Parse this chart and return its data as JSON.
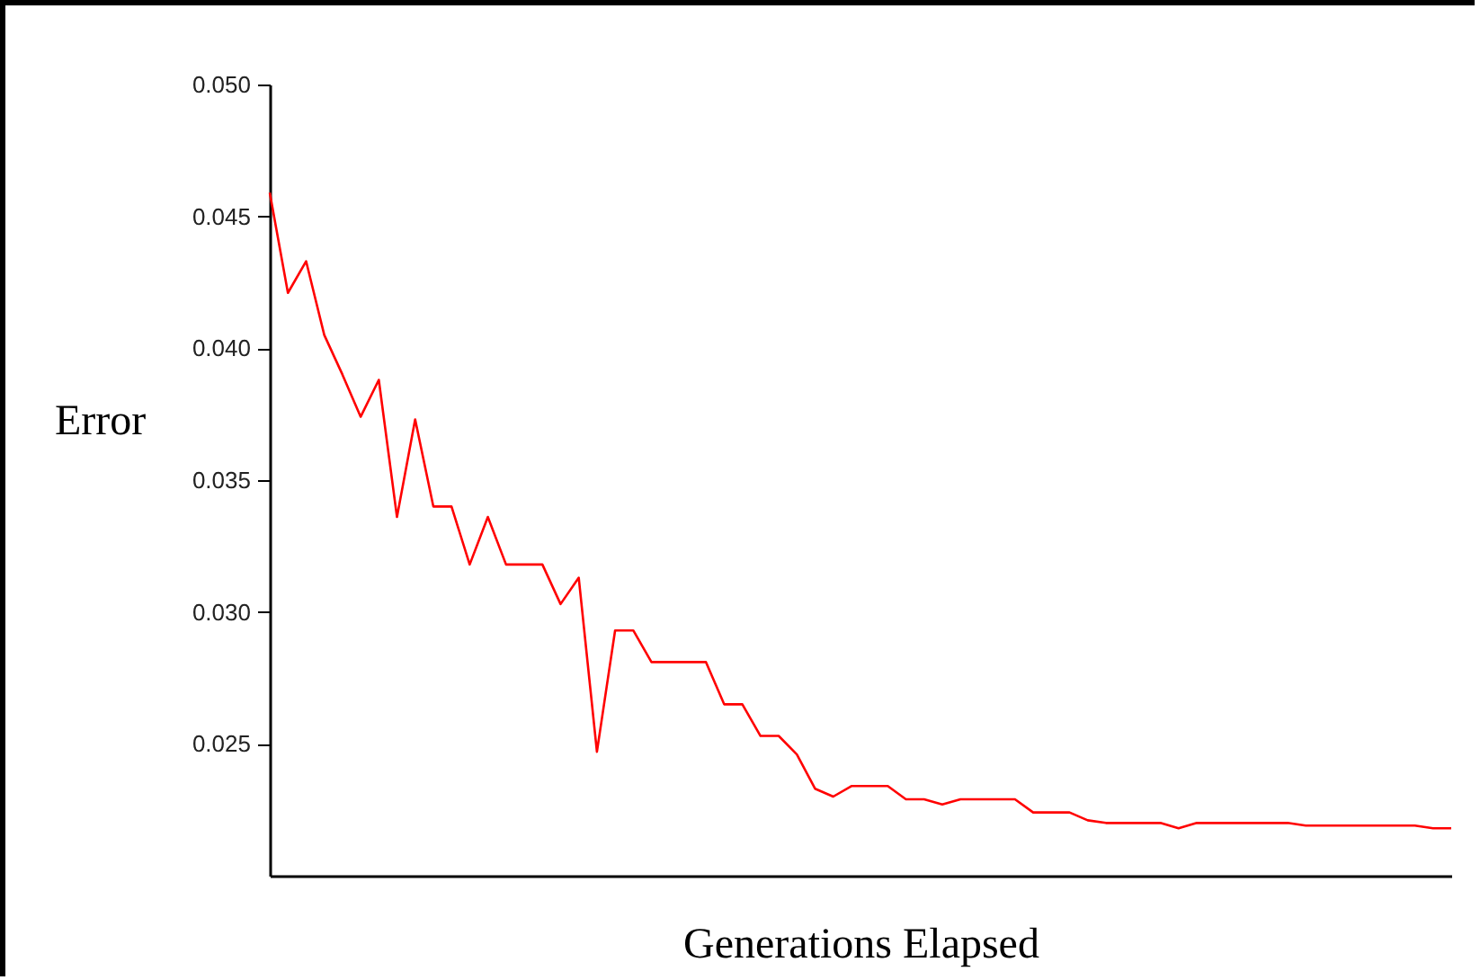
{
  "chart_data": {
    "type": "line",
    "xlabel": "Generations Elapsed",
    "ylabel": "Error",
    "categories": [
      null,
      null,
      null,
      null,
      null,
      null,
      null,
      null,
      null,
      null,
      null,
      null,
      null,
      null,
      null,
      null,
      null,
      null,
      null,
      null,
      null,
      null,
      null,
      null,
      null,
      null,
      null,
      null,
      null,
      null,
      null,
      null,
      null,
      null,
      null,
      null,
      null,
      null,
      null,
      null,
      null,
      null,
      null,
      null,
      null,
      null,
      null,
      null,
      null,
      null,
      null,
      null,
      null,
      null,
      null,
      null,
      null,
      null,
      null,
      null,
      null,
      null,
      null,
      null,
      null,
      null
    ],
    "series": [
      {
        "color": "#ff0000",
        "values": [
          0.0459,
          0.0421,
          0.0433,
          0.0405,
          0.039,
          0.0374,
          0.0388,
          0.0336,
          0.0373,
          0.034,
          0.034,
          0.0318,
          0.0336,
          0.0318,
          0.0318,
          0.0318,
          0.0303,
          0.0313,
          0.0247,
          0.0293,
          0.0293,
          0.0281,
          0.0281,
          0.0281,
          0.0281,
          0.0265,
          0.0265,
          0.0253,
          0.0253,
          0.0246,
          0.0233,
          0.023,
          0.0234,
          0.0234,
          0.0234,
          0.0229,
          0.0229,
          0.0227,
          0.0229,
          0.0229,
          0.0229,
          0.0229,
          0.0224,
          0.0224,
          0.0224,
          0.0221,
          0.022,
          0.022,
          0.022,
          0.022,
          0.0218,
          0.022,
          0.022,
          0.022,
          0.022,
          0.022,
          0.022,
          0.0219,
          0.0219,
          0.0219,
          0.0219,
          0.0219,
          0.0219,
          0.0219,
          0.0218,
          0.0218
        ]
      }
    ],
    "ylim": [
      0.02,
      0.05
    ],
    "yticks": [
      {
        "value": 0.025,
        "label": "0.025"
      },
      {
        "value": 0.03,
        "label": "0.030"
      },
      {
        "value": 0.035,
        "label": "0.035"
      },
      {
        "value": 0.04,
        "label": "0.040"
      },
      {
        "value": 0.045,
        "label": "0.045"
      },
      {
        "value": 0.05,
        "label": "0.050"
      }
    ],
    "tick_labels": "y",
    "grid": false,
    "marker": "none",
    "line_style": "solid"
  }
}
